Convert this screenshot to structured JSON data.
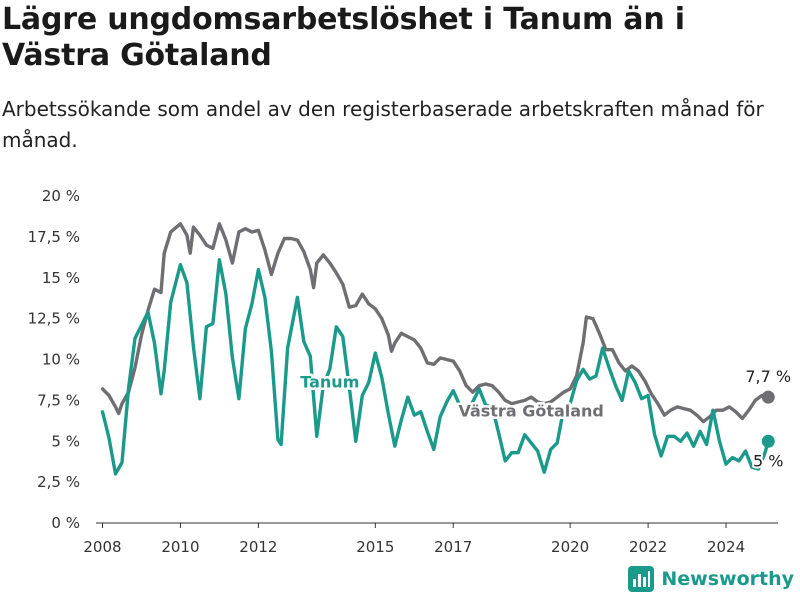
{
  "header": {
    "title": "Lägre ungdomsarbetslöshet i Tanum än i Västra Götaland",
    "subtitle": "Arbetssökande som andel av den registerbaserade arbetskraften månad för månad."
  },
  "brand": {
    "name": "Newsworthy",
    "logo_icon": "bar-chart-icon",
    "color": "#1b9a8c"
  },
  "chart_data": {
    "type": "line",
    "title": "",
    "xlabel": "",
    "ylabel": "",
    "ylim": [
      0,
      20
    ],
    "xlim": [
      "2007-11",
      "2025-05"
    ],
    "grid": false,
    "y_ticks": [
      0,
      2.5,
      5,
      7.5,
      10,
      12.5,
      15,
      17.5,
      20
    ],
    "y_tick_labels": [
      "0 %",
      "2,5 %",
      "5 %",
      "7,5 %",
      "10 %",
      "12,5 %",
      "15 %",
      "17,5 %",
      "20 %"
    ],
    "x_ticks": [
      "2008-01",
      "2010-01",
      "2012-01",
      "2015-01",
      "2017-01",
      "2020-01",
      "2022-01",
      "2024-01"
    ],
    "x_tick_labels": [
      "2008",
      "2010",
      "2012",
      "2015",
      "2017",
      "2020",
      "2022",
      "2024"
    ],
    "series": [
      {
        "name": "Västra Götaland",
        "color": "#6e6e73",
        "label": "Västra Götaland",
        "end_label": "7,7 %",
        "points": [
          [
            "2008-01",
            8.2
          ],
          [
            "2008-03",
            7.8
          ],
          [
            "2008-05",
            7.1
          ],
          [
            "2008-06",
            6.7
          ],
          [
            "2008-07",
            7.3
          ],
          [
            "2008-09",
            8.0
          ],
          [
            "2008-11",
            9.5
          ],
          [
            "2009-01",
            11.5
          ],
          [
            "2009-03",
            13.0
          ],
          [
            "2009-05",
            14.3
          ],
          [
            "2009-07",
            14.1
          ],
          [
            "2009-08",
            16.5
          ],
          [
            "2009-10",
            17.8
          ],
          [
            "2010-01",
            18.3
          ],
          [
            "2010-03",
            17.6
          ],
          [
            "2010-04",
            16.5
          ],
          [
            "2010-05",
            18.1
          ],
          [
            "2010-07",
            17.6
          ],
          [
            "2010-09",
            17.0
          ],
          [
            "2010-11",
            16.8
          ],
          [
            "2011-01",
            18.3
          ],
          [
            "2011-03",
            17.3
          ],
          [
            "2011-05",
            15.9
          ],
          [
            "2011-07",
            17.8
          ],
          [
            "2011-09",
            18.0
          ],
          [
            "2011-11",
            17.8
          ],
          [
            "2012-01",
            17.9
          ],
          [
            "2012-03",
            16.7
          ],
          [
            "2012-05",
            15.2
          ],
          [
            "2012-07",
            16.5
          ],
          [
            "2012-09",
            17.4
          ],
          [
            "2012-11",
            17.4
          ],
          [
            "2013-01",
            17.3
          ],
          [
            "2013-03",
            16.6
          ],
          [
            "2013-05",
            15.5
          ],
          [
            "2013-06",
            14.4
          ],
          [
            "2013-07",
            15.9
          ],
          [
            "2013-09",
            16.4
          ],
          [
            "2013-11",
            15.9
          ],
          [
            "2014-01",
            15.3
          ],
          [
            "2014-03",
            14.6
          ],
          [
            "2014-05",
            13.2
          ],
          [
            "2014-07",
            13.3
          ],
          [
            "2014-09",
            14.0
          ],
          [
            "2014-11",
            13.4
          ],
          [
            "2015-01",
            13.1
          ],
          [
            "2015-03",
            12.5
          ],
          [
            "2015-05",
            11.5
          ],
          [
            "2015-06",
            10.5
          ],
          [
            "2015-07",
            11.0
          ],
          [
            "2015-09",
            11.6
          ],
          [
            "2015-11",
            11.4
          ],
          [
            "2016-01",
            11.2
          ],
          [
            "2016-03",
            10.7
          ],
          [
            "2016-05",
            9.8
          ],
          [
            "2016-07",
            9.7
          ],
          [
            "2016-09",
            10.1
          ],
          [
            "2016-11",
            10.0
          ],
          [
            "2017-01",
            9.9
          ],
          [
            "2017-03",
            9.3
          ],
          [
            "2017-05",
            8.4
          ],
          [
            "2017-07",
            8.0
          ],
          [
            "2017-09",
            8.4
          ],
          [
            "2017-11",
            8.5
          ],
          [
            "2018-01",
            8.4
          ],
          [
            "2018-03",
            8.0
          ],
          [
            "2018-05",
            7.5
          ],
          [
            "2018-07",
            7.3
          ],
          [
            "2018-09",
            7.4
          ],
          [
            "2018-11",
            7.5
          ],
          [
            "2019-01",
            7.7
          ],
          [
            "2019-03",
            7.4
          ],
          [
            "2019-05",
            7.3
          ],
          [
            "2019-07",
            7.4
          ],
          [
            "2019-09",
            7.7
          ],
          [
            "2019-11",
            8.0
          ],
          [
            "2020-01",
            8.2
          ],
          [
            "2020-03",
            9.0
          ],
          [
            "2020-05",
            11.0
          ],
          [
            "2020-06",
            12.6
          ],
          [
            "2020-08",
            12.5
          ],
          [
            "2020-10",
            11.6
          ],
          [
            "2020-12",
            10.6
          ],
          [
            "2021-02",
            10.6
          ],
          [
            "2021-04",
            9.8
          ],
          [
            "2021-06",
            9.3
          ],
          [
            "2021-08",
            9.6
          ],
          [
            "2021-10",
            9.3
          ],
          [
            "2021-12",
            8.7
          ],
          [
            "2022-02",
            7.9
          ],
          [
            "2022-04",
            7.3
          ],
          [
            "2022-06",
            6.6
          ],
          [
            "2022-08",
            6.9
          ],
          [
            "2022-10",
            7.1
          ],
          [
            "2022-12",
            7.0
          ],
          [
            "2023-02",
            6.9
          ],
          [
            "2023-04",
            6.6
          ],
          [
            "2023-06",
            6.2
          ],
          [
            "2023-08",
            6.5
          ],
          [
            "2023-10",
            6.9
          ],
          [
            "2023-12",
            6.9
          ],
          [
            "2024-02",
            7.1
          ],
          [
            "2024-04",
            6.8
          ],
          [
            "2024-06",
            6.4
          ],
          [
            "2024-08",
            6.9
          ],
          [
            "2024-10",
            7.5
          ],
          [
            "2024-12",
            7.8
          ],
          [
            "2025-02",
            7.7
          ]
        ]
      },
      {
        "name": "Tanum",
        "color": "#1b9a8c",
        "label": "Tanum",
        "end_label": "5 %",
        "points": [
          [
            "2008-01",
            6.8
          ],
          [
            "2008-03",
            5.2
          ],
          [
            "2008-05",
            3.0
          ],
          [
            "2008-07",
            3.7
          ],
          [
            "2008-09",
            8.2
          ],
          [
            "2008-11",
            11.3
          ],
          [
            "2009-01",
            12.1
          ],
          [
            "2009-03",
            12.9
          ],
          [
            "2009-05",
            11.0
          ],
          [
            "2009-07",
            7.9
          ],
          [
            "2009-08",
            9.3
          ],
          [
            "2009-10",
            13.5
          ],
          [
            "2010-01",
            15.8
          ],
          [
            "2010-03",
            14.7
          ],
          [
            "2010-05",
            10.8
          ],
          [
            "2010-07",
            7.6
          ],
          [
            "2010-09",
            12.0
          ],
          [
            "2010-11",
            12.2
          ],
          [
            "2011-01",
            16.1
          ],
          [
            "2011-03",
            14.0
          ],
          [
            "2011-05",
            10.1
          ],
          [
            "2011-07",
            7.6
          ],
          [
            "2011-09",
            11.9
          ],
          [
            "2011-11",
            13.4
          ],
          [
            "2012-01",
            15.5
          ],
          [
            "2012-03",
            13.8
          ],
          [
            "2012-05",
            10.5
          ],
          [
            "2012-07",
            5.1
          ],
          [
            "2012-08",
            4.8
          ],
          [
            "2012-10",
            10.7
          ],
          [
            "2013-01",
            13.8
          ],
          [
            "2013-03",
            11.1
          ],
          [
            "2013-05",
            10.2
          ],
          [
            "2013-07",
            5.3
          ],
          [
            "2013-09",
            8.4
          ],
          [
            "2013-11",
            9.4
          ],
          [
            "2014-01",
            12.0
          ],
          [
            "2014-03",
            11.4
          ],
          [
            "2014-05",
            8.3
          ],
          [
            "2014-07",
            5.0
          ],
          [
            "2014-09",
            7.8
          ],
          [
            "2014-11",
            8.6
          ],
          [
            "2015-01",
            10.4
          ],
          [
            "2015-03",
            8.9
          ],
          [
            "2015-05",
            6.7
          ],
          [
            "2015-07",
            4.7
          ],
          [
            "2015-09",
            6.3
          ],
          [
            "2015-11",
            7.7
          ],
          [
            "2016-01",
            6.6
          ],
          [
            "2016-03",
            6.8
          ],
          [
            "2016-05",
            5.6
          ],
          [
            "2016-07",
            4.5
          ],
          [
            "2016-09",
            6.5
          ],
          [
            "2016-11",
            7.4
          ],
          [
            "2017-01",
            8.1
          ],
          [
            "2017-03",
            7.2
          ],
          [
            "2017-05",
            6.7
          ],
          [
            "2017-07",
            7.4
          ],
          [
            "2017-09",
            8.2
          ],
          [
            "2017-11",
            7.2
          ],
          [
            "2018-01",
            7.1
          ],
          [
            "2018-03",
            5.5
          ],
          [
            "2018-05",
            3.8
          ],
          [
            "2018-07",
            4.3
          ],
          [
            "2018-09",
            4.3
          ],
          [
            "2018-11",
            5.4
          ],
          [
            "2019-01",
            4.9
          ],
          [
            "2019-03",
            4.4
          ],
          [
            "2019-05",
            3.1
          ],
          [
            "2019-07",
            4.5
          ],
          [
            "2019-09",
            4.9
          ],
          [
            "2019-11",
            7.0
          ],
          [
            "2020-01",
            7.3
          ],
          [
            "2020-03",
            8.7
          ],
          [
            "2020-05",
            9.4
          ],
          [
            "2020-07",
            8.8
          ],
          [
            "2020-09",
            9.0
          ],
          [
            "2020-11",
            10.7
          ],
          [
            "2021-01",
            9.5
          ],
          [
            "2021-03",
            8.4
          ],
          [
            "2021-05",
            7.5
          ],
          [
            "2021-07",
            9.3
          ],
          [
            "2021-09",
            8.6
          ],
          [
            "2021-11",
            7.6
          ],
          [
            "2022-01",
            7.8
          ],
          [
            "2022-03",
            5.4
          ],
          [
            "2022-05",
            4.1
          ],
          [
            "2022-07",
            5.3
          ],
          [
            "2022-09",
            5.3
          ],
          [
            "2022-11",
            5.0
          ],
          [
            "2023-01",
            5.5
          ],
          [
            "2023-03",
            4.7
          ],
          [
            "2023-05",
            5.6
          ],
          [
            "2023-07",
            4.8
          ],
          [
            "2023-09",
            6.9
          ],
          [
            "2023-11",
            5.0
          ],
          [
            "2024-01",
            3.6
          ],
          [
            "2024-03",
            4.0
          ],
          [
            "2024-05",
            3.8
          ],
          [
            "2024-07",
            4.4
          ],
          [
            "2024-09",
            3.4
          ],
          [
            "2024-11",
            3.3
          ],
          [
            "2025-01",
            4.3
          ],
          [
            "2025-02",
            5.0
          ]
        ]
      }
    ]
  }
}
